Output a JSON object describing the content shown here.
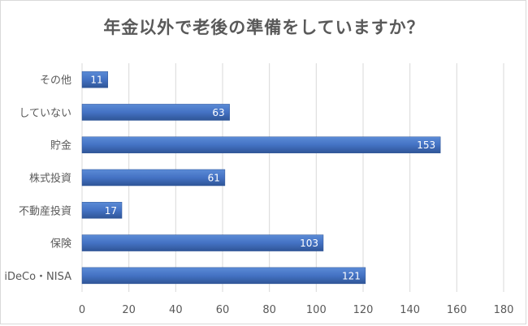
{
  "chart_data": {
    "type": "bar",
    "orientation": "horizontal",
    "title": "年金以外で老後の準備をしていますか？",
    "categories": [
      "その他",
      "していない",
      "貯金",
      "株式投資",
      "不動産投資",
      "保険",
      "iDeCo・NISA"
    ],
    "values": [
      11,
      63,
      153,
      61,
      17,
      103,
      121
    ],
    "xlim": [
      0,
      180
    ],
    "xticks": [
      0,
      20,
      40,
      60,
      80,
      100,
      120,
      140,
      160,
      180
    ],
    "grid": true,
    "legend": "none",
    "data_labels": true,
    "colors": {
      "bar": "#4472c4",
      "bar_dark": "#2f5597",
      "grid": "#d9d9d9",
      "text": "#595959"
    }
  }
}
